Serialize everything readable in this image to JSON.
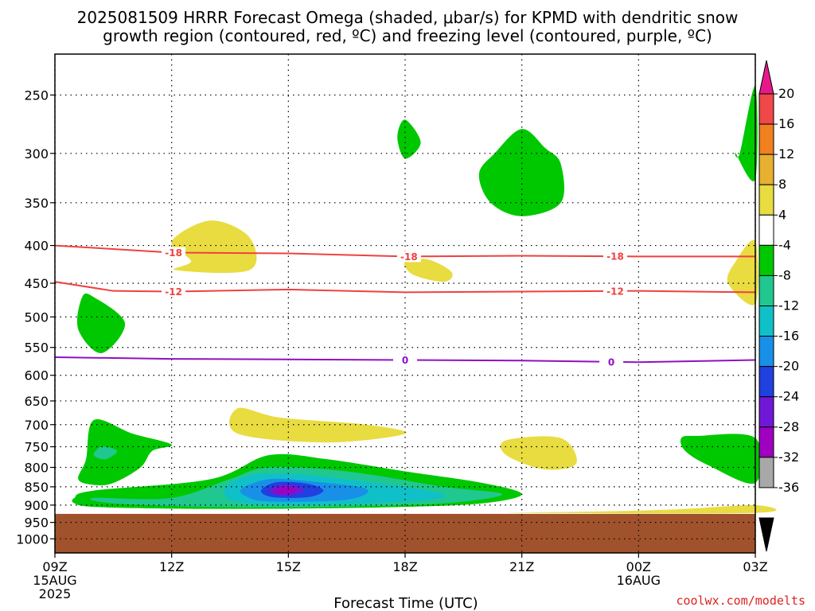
{
  "title_line1": "2025081509 HRRR Forecast Omega (shaded, μbar/s) for KPMD with dendritic snow",
  "title_line2": "growth region (contoured, red, ºC) and freezing level (contoured, purple, ºC)",
  "credit": "coolwx.com/modelts",
  "colors": {
    "ground": "#a0522d",
    "dendritic_contour": "#f04040",
    "freezing_contour": "#9010c0",
    "grid": "#000000"
  },
  "chart_data": {
    "type": "time-height contour",
    "xlabel": "Forecast Time (UTC)",
    "ylabel": "",
    "x_range": [
      "2025-08-15 09Z",
      "2025-08-16 03Z"
    ],
    "y_scale": "log-pressure, inverted",
    "y_ticks": [
      250,
      300,
      350,
      400,
      450,
      500,
      550,
      600,
      650,
      700,
      750,
      800,
      850,
      900,
      950,
      1000
    ],
    "x_ticks": [
      {
        "hour": 0,
        "label": "09Z",
        "sub1": "15AUG",
        "sub2": "2025"
      },
      {
        "hour": 3,
        "label": "12Z",
        "sub1": "",
        "sub2": ""
      },
      {
        "hour": 6,
        "label": "15Z",
        "sub1": "",
        "sub2": ""
      },
      {
        "hour": 9,
        "label": "18Z",
        "sub1": "",
        "sub2": ""
      },
      {
        "hour": 12,
        "label": "21Z",
        "sub1": "",
        "sub2": ""
      },
      {
        "hour": 15,
        "label": "00Z",
        "sub1": "16AUG",
        "sub2": ""
      },
      {
        "hour": 18,
        "label": "03Z",
        "sub1": "",
        "sub2": ""
      }
    ],
    "grid": true,
    "surface_pressure_hpa": 925,
    "colorbar": {
      "labels": [
        "20",
        "16",
        "12",
        "8",
        "4",
        "-4",
        "-8",
        "-12",
        "-16",
        "-20",
        "-24",
        "-28",
        "-32",
        "-36"
      ],
      "colors": [
        "#e8188c",
        "#f04848",
        "#f08020",
        "#e8b030",
        "#e8dc40",
        "#ffffff",
        "#00c800",
        "#20c890",
        "#10c0c8",
        "#1890e8",
        "#2040e0",
        "#7018d8",
        "#a000c0",
        "#a8a8a8",
        "#000000"
      ]
    },
    "contours": [
      {
        "name": "dendritic -18",
        "label": "-18",
        "color": "#f04040",
        "points": [
          [
            0,
            400
          ],
          [
            3,
            409
          ],
          [
            6,
            410
          ],
          [
            9,
            414
          ],
          [
            12,
            413
          ],
          [
            15,
            414
          ],
          [
            18,
            414
          ]
        ],
        "label_hours": [
          3.05,
          9.1,
          14.4
        ]
      },
      {
        "name": "dendritic -12",
        "label": "-12",
        "color": "#f04040",
        "points": [
          [
            0,
            448
          ],
          [
            1.5,
            461
          ],
          [
            3,
            462
          ],
          [
            6,
            459
          ],
          [
            9,
            463
          ],
          [
            12,
            462
          ],
          [
            15,
            461
          ],
          [
            18,
            463
          ]
        ],
        "label_hours": [
          3.05,
          14.4
        ]
      },
      {
        "name": "freezing level 0",
        "label": "0",
        "color": "#9010c0",
        "points": [
          [
            0,
            567
          ],
          [
            3,
            570
          ],
          [
            6,
            571
          ],
          [
            9,
            572
          ],
          [
            12,
            573
          ],
          [
            15,
            576
          ],
          [
            18,
            572
          ]
        ],
        "label_hours": [
          9.0,
          14.3
        ]
      }
    ],
    "shaded_regions": [
      {
        "value": "-4 to -8",
        "color": "#00c800",
        "points": [
          [
            9.0,
            270
          ],
          [
            9.4,
            290
          ],
          [
            9.0,
            305
          ],
          [
            8.8,
            285
          ]
        ]
      },
      {
        "value": "-4 to -8",
        "color": "#00c800",
        "points": [
          [
            12.0,
            278
          ],
          [
            12.6,
            295
          ],
          [
            13.0,
            310
          ],
          [
            13.0,
            350
          ],
          [
            12.0,
            365
          ],
          [
            11.2,
            350
          ],
          [
            10.9,
            320
          ],
          [
            11.3,
            300
          ]
        ]
      },
      {
        "value": "-4 to -8",
        "color": "#00c800",
        "points": [
          [
            17.6,
            300
          ],
          [
            18,
            243
          ],
          [
            18,
            325
          ],
          [
            17.5,
            300
          ]
        ]
      },
      {
        "value": "-4 to -8",
        "color": "#00c800",
        "points": [
          [
            1.0,
            470
          ],
          [
            1.8,
            510
          ],
          [
            1.2,
            560
          ],
          [
            0.6,
            520
          ],
          [
            0.7,
            470
          ]
        ]
      },
      {
        "value": "4 to 8",
        "color": "#e8dc40",
        "points": [
          [
            3.0,
            395
          ],
          [
            4.0,
            370
          ],
          [
            5.0,
            390
          ],
          [
            5.0,
            432
          ],
          [
            3.1,
            432
          ],
          [
            3.5,
            420
          ]
        ]
      },
      {
        "value": "4 to 8",
        "color": "#e8dc40",
        "points": [
          [
            9.0,
            420
          ],
          [
            9.6,
            418
          ],
          [
            10.2,
            435
          ],
          [
            10.0,
            448
          ],
          [
            9.2,
            438
          ]
        ]
      },
      {
        "value": "4 to 8",
        "color": "#e8dc40",
        "points": [
          [
            18,
            395
          ],
          [
            17.5,
            420
          ],
          [
            17.3,
            450
          ],
          [
            18,
            480
          ]
        ]
      },
      {
        "value": "4 to 8",
        "color": "#e8dc40",
        "points": [
          [
            4.7,
            665
          ],
          [
            5.8,
            685
          ],
          [
            8.0,
            700
          ],
          [
            9.0,
            720
          ],
          [
            7.0,
            740
          ],
          [
            4.7,
            720
          ]
        ]
      },
      {
        "value": "4 to 8",
        "color": "#e8dc40",
        "points": [
          [
            11.6,
            735
          ],
          [
            13.0,
            730
          ],
          [
            13.4,
            790
          ],
          [
            12.6,
            805
          ],
          [
            11.6,
            770
          ]
        ]
      },
      {
        "value": "4 to 8",
        "color": "#e8dc40",
        "points": [
          [
            11.8,
            922
          ],
          [
            14,
            918
          ],
          [
            16,
            912
          ],
          [
            18,
            900
          ],
          [
            18,
            922
          ]
        ]
      },
      {
        "value": "-4 to -8",
        "color": "#00c800",
        "points": [
          [
            16.1,
            730
          ],
          [
            16.5,
            725
          ],
          [
            18,
            730
          ],
          [
            18,
            840
          ],
          [
            16.8,
            795
          ],
          [
            16.2,
            760
          ]
        ]
      },
      {
        "value": "-4 to -8",
        "color": "#00c800",
        "points": [
          [
            0.8,
            780
          ],
          [
            1.0,
            690
          ],
          [
            2.0,
            720
          ],
          [
            3.0,
            745
          ],
          [
            2.5,
            760
          ],
          [
            2.2,
            800
          ],
          [
            1.5,
            840
          ],
          [
            1.0,
            845
          ],
          [
            0.6,
            830
          ]
        ]
      },
      {
        "value": "-4 to -8",
        "color": "#00c800",
        "points": [
          [
            0.5,
            880
          ],
          [
            1.0,
            860
          ],
          [
            4.0,
            830
          ],
          [
            5.5,
            770
          ],
          [
            7.0,
            780
          ],
          [
            9.0,
            810
          ],
          [
            11.0,
            840
          ],
          [
            12.0,
            870
          ],
          [
            11.0,
            895
          ],
          [
            9.0,
            905
          ],
          [
            6.0,
            910
          ],
          [
            3.0,
            910
          ],
          [
            1.0,
            905
          ],
          [
            0.5,
            895
          ]
        ]
      },
      {
        "value": "-8 to -12",
        "color": "#20c890",
        "points": [
          [
            1.2,
            750
          ],
          [
            1.6,
            760
          ],
          [
            1.3,
            780
          ],
          [
            1.0,
            770
          ]
        ]
      },
      {
        "value": "-8 to -12",
        "color": "#20c890",
        "points": [
          [
            1.0,
            880
          ],
          [
            3.0,
            880
          ],
          [
            4.5,
            830
          ],
          [
            5.5,
            800
          ],
          [
            7.5,
            810
          ],
          [
            10.0,
            850
          ],
          [
            11.5,
            870
          ],
          [
            10.0,
            895
          ],
          [
            7.0,
            905
          ],
          [
            4.0,
            905
          ],
          [
            1.5,
            895
          ]
        ]
      },
      {
        "value": "-12 to -16",
        "color": "#10c0c8",
        "points": [
          [
            4.5,
            840
          ],
          [
            5.5,
            815
          ],
          [
            7.5,
            830
          ],
          [
            10.0,
            870
          ],
          [
            9.0,
            890
          ],
          [
            6.0,
            900
          ],
          [
            4.5,
            885
          ]
        ]
      },
      {
        "value": "-16 to -20",
        "color": "#1890e8",
        "points": [
          [
            4.8,
            855
          ],
          [
            5.5,
            830
          ],
          [
            6.5,
            835
          ],
          [
            8.0,
            855
          ],
          [
            7.5,
            885
          ],
          [
            5.5,
            890
          ],
          [
            4.9,
            875
          ]
        ]
      },
      {
        "value": "-20 to -24",
        "color": "#2040e0",
        "points": [
          [
            5.3,
            860
          ],
          [
            5.7,
            838
          ],
          [
            6.5,
            842
          ],
          [
            6.9,
            860
          ],
          [
            6.5,
            878
          ],
          [
            5.6,
            878
          ]
        ]
      },
      {
        "value": "-24 to -28",
        "color": "#7018d8",
        "points": [
          [
            5.5,
            860
          ],
          [
            5.8,
            845
          ],
          [
            6.2,
            847
          ],
          [
            6.4,
            860
          ],
          [
            6.1,
            872
          ],
          [
            5.7,
            872
          ]
        ]
      },
      {
        "value": "-28 to -32",
        "color": "#a000c0",
        "points": [
          [
            5.65,
            860
          ],
          [
            5.9,
            852
          ],
          [
            6.15,
            855
          ],
          [
            6.2,
            862
          ],
          [
            6.0,
            868
          ],
          [
            5.75,
            868
          ]
        ]
      }
    ]
  }
}
